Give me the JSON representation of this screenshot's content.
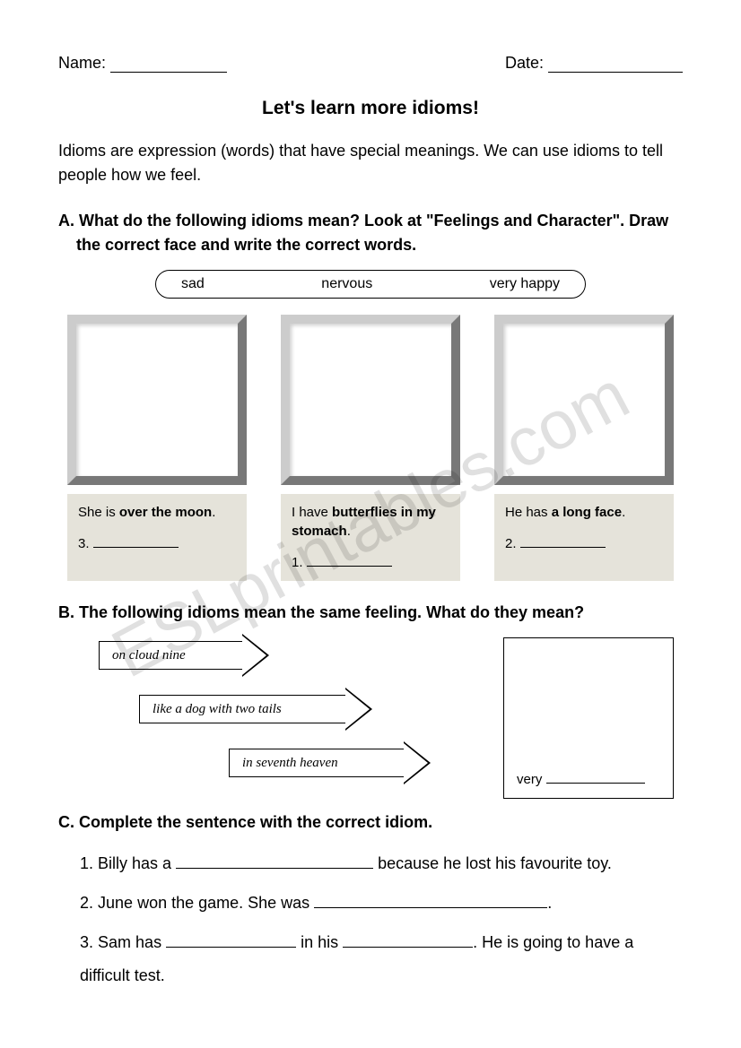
{
  "watermark": "ESLprintables.com",
  "header": {
    "name_label": "Name:",
    "date_label": "Date:"
  },
  "title": "Let's learn more idioms!",
  "intro": "Idioms are expression (words) that have special meanings. We can use idioms to tell people how we feel.",
  "section_a": {
    "heading": "A. What do the following idioms mean? Look at \"Feelings and Character\". Draw the correct face and write the correct words.",
    "word_bank": [
      "sad",
      "nervous",
      "very happy"
    ],
    "items": [
      {
        "pre": "She is ",
        "bold": "over the moon",
        "post": ".",
        "num": "3."
      },
      {
        "pre": "I have ",
        "bold": "butterflies in my stomach",
        "post": ".",
        "num": "1."
      },
      {
        "pre": "He has ",
        "bold": "a long face",
        "post": ".",
        "num": "2."
      }
    ]
  },
  "section_b": {
    "heading": "B. The following idioms mean the same feeling. What do they mean?",
    "arrows": [
      "on cloud nine",
      "like a dog with two tails",
      "in seventh heaven"
    ],
    "answer_prefix": "very"
  },
  "section_c": {
    "heading": "C. Complete the sentence with the correct idiom.",
    "sentences": [
      {
        "num": "1.",
        "parts": [
          "Billy has a ",
          "__220__",
          " because he lost his favourite toy."
        ]
      },
      {
        "num": "2.",
        "parts": [
          "June won the game. She was ",
          "__260__",
          "."
        ]
      },
      {
        "num": "3.",
        "parts": [
          "Sam has ",
          "__145__",
          " in his ",
          "__145__",
          ". He is going to have a difficult test."
        ]
      }
    ]
  },
  "colors": {
    "background": "#ffffff",
    "text": "#000000",
    "caption_bg": "#e5e3da",
    "frame_border": "#cccccc",
    "watermark": "rgba(0,0,0,0.12)"
  }
}
